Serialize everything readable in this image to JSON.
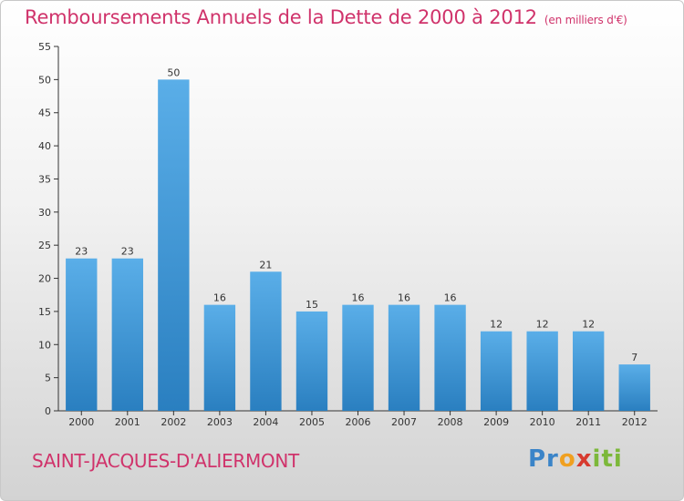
{
  "header": {
    "title": "Remboursements Annuels de la Dette de 2000 à 2012",
    "unit": "(en milliers d'€)"
  },
  "footer": {
    "commune": "SAINT-JACQUES-D'ALIERMONT",
    "logo": "Proxiti"
  },
  "colors": {
    "title": "#d0336b",
    "bar_light": "#5aaee8",
    "bar_dark": "#2a7fc0"
  },
  "chart_data": {
    "type": "bar",
    "title": "Remboursements Annuels de la Dette de 2000 à 2012",
    "subtitle": "(en milliers d'€)",
    "categories": [
      "2000",
      "2001",
      "2002",
      "2003",
      "2004",
      "2005",
      "2006",
      "2007",
      "2008",
      "2009",
      "2010",
      "2011",
      "2012"
    ],
    "values": [
      23,
      23,
      50,
      16,
      21,
      15,
      16,
      16,
      16,
      12,
      12,
      12,
      7
    ],
    "ylim": [
      0,
      55
    ],
    "yticks": [
      0,
      5,
      10,
      15,
      20,
      25,
      30,
      35,
      40,
      45,
      50,
      55
    ],
    "grid": false,
    "data_labels": true
  }
}
